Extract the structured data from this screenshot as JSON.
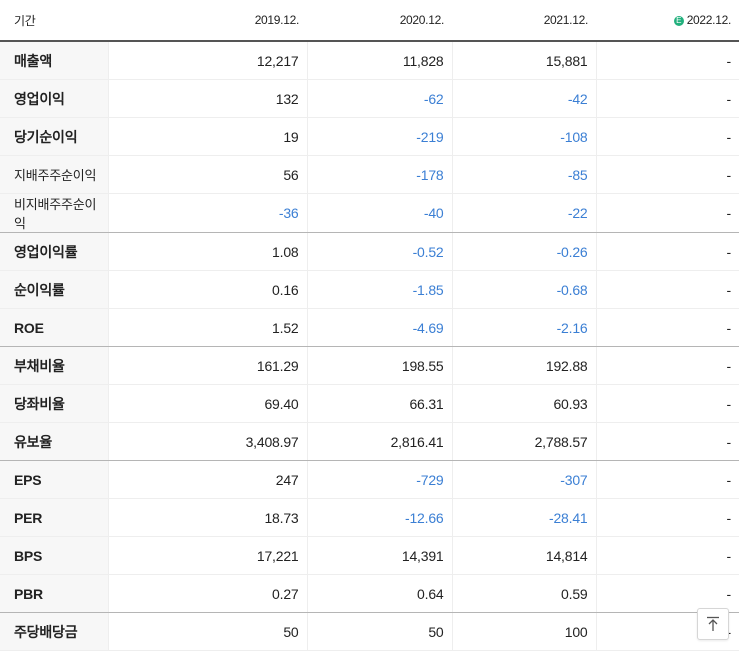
{
  "header": {
    "label": "기간",
    "est_mark": "E",
    "periods": [
      "2019.12.",
      "2020.12.",
      "2021.12.",
      "2022.12."
    ]
  },
  "rows": [
    {
      "label": "매출액",
      "values": [
        "12,217",
        "11,828",
        "15,881",
        "-"
      ]
    },
    {
      "label": "영업이익",
      "values": [
        "132",
        "-62",
        "-42",
        "-"
      ]
    },
    {
      "label": "당기순이익",
      "values": [
        "19",
        "-219",
        "-108",
        "-"
      ]
    },
    {
      "label": "지배주주순이익",
      "values": [
        "56",
        "-178",
        "-85",
        "-"
      ]
    },
    {
      "label": "비지배주주순이익",
      "values": [
        "-36",
        "-40",
        "-22",
        "-"
      ]
    },
    {
      "label": "영업이익률",
      "values": [
        "1.08",
        "-0.52",
        "-0.26",
        "-"
      ]
    },
    {
      "label": "순이익률",
      "values": [
        "0.16",
        "-1.85",
        "-0.68",
        "-"
      ]
    },
    {
      "label": "ROE",
      "values": [
        "1.52",
        "-4.69",
        "-2.16",
        "-"
      ]
    },
    {
      "label": "부채비율",
      "values": [
        "161.29",
        "198.55",
        "192.88",
        "-"
      ]
    },
    {
      "label": "당좌비율",
      "values": [
        "69.40",
        "66.31",
        "60.93",
        "-"
      ]
    },
    {
      "label": "유보율",
      "values": [
        "3,408.97",
        "2,816.41",
        "2,788.57",
        "-"
      ]
    },
    {
      "label": "EPS",
      "values": [
        "247",
        "-729",
        "-307",
        "-"
      ]
    },
    {
      "label": "PER",
      "values": [
        "18.73",
        "-12.66",
        "-28.41",
        "-"
      ]
    },
    {
      "label": "BPS",
      "values": [
        "17,221",
        "14,391",
        "14,814",
        "-"
      ]
    },
    {
      "label": "PBR",
      "values": [
        "0.27",
        "0.64",
        "0.59",
        "-"
      ]
    },
    {
      "label": "주당배당금",
      "values": [
        "50",
        "50",
        "100",
        "-"
      ]
    }
  ],
  "colors": {
    "negative": "#3b7fd4",
    "estimate_badge": "#22b07d"
  },
  "icons": {
    "scroll_top": "arrow-up-to-line-icon"
  }
}
